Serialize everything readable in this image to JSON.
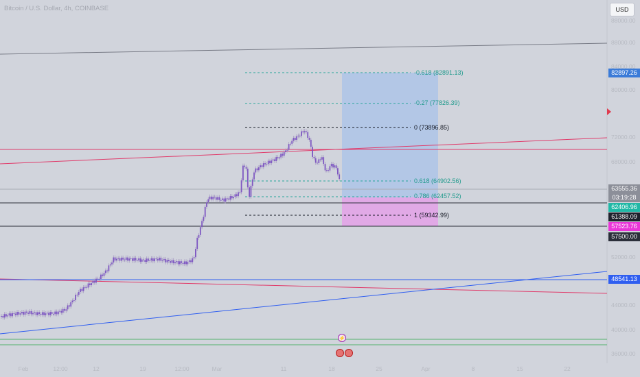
{
  "header": {
    "title": "Bitcoin / U.S. Dollar, 4h, COINBASE",
    "currency_button": "USD"
  },
  "price_axis": {
    "ticks": [
      "88000.00",
      "84000.00",
      "80000.00",
      "76000.00",
      "72000.00",
      "68000.00",
      "52000.00",
      "48000.00",
      "44000.00",
      "40000.00",
      "36000.00"
    ]
  },
  "time_axis": {
    "ticks": [
      "Feb",
      "12:00",
      "12",
      "19",
      "12:00",
      "Mar",
      "11",
      "18",
      "25",
      "Apr",
      "8",
      "15",
      "22"
    ]
  },
  "price_tags": {
    "target": "82897.26",
    "current": "63555.36",
    "countdown": "03:19:28",
    "level_teal": "62406.96",
    "level_black": "61388.09",
    "level_magenta": "57523.76",
    "level_dark": "57500.00",
    "level_blue": "48541.13"
  },
  "fib_levels": [
    {
      "label": "-0.618 (82891.13)",
      "color": "#26a69a"
    },
    {
      "label": "-0.27 (77826.39)",
      "color": "#26a69a"
    },
    {
      "label": "0 (73896.85)",
      "color": "#131722"
    },
    {
      "label": "0.618 (64902.56)",
      "color": "#26a69a"
    },
    {
      "label": "0.786 (62457.52)",
      "color": "#26a69a"
    },
    {
      "label": "1 (59342.99)",
      "color": "#131722"
    }
  ],
  "colors": {
    "background": "#d1d4dc",
    "candles": "#7e57c2",
    "target_zone": "#b3c7e6",
    "stop_zone": "#e1a9e6",
    "red_lines": "#e03a6a",
    "blue_line": "#2f5ef0",
    "green_lines": "#52b26b"
  }
}
